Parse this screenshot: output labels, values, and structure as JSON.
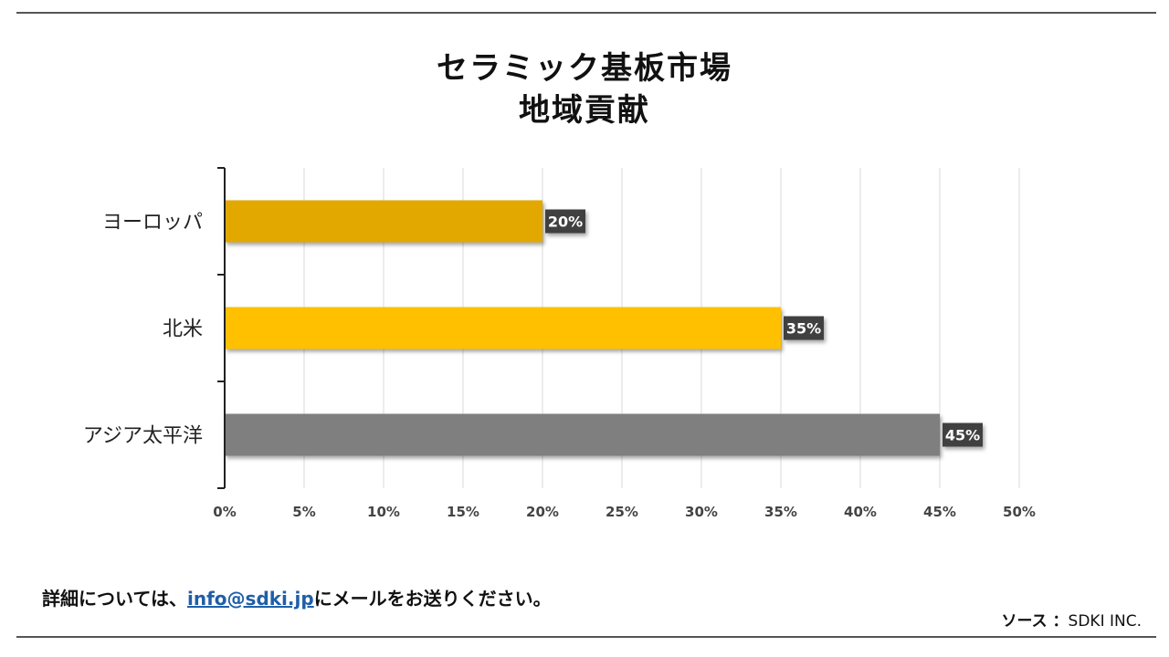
{
  "title": {
    "line1": "セラミック基板市場",
    "line2": "地域貢献"
  },
  "chart_data": {
    "type": "bar",
    "orientation": "horizontal",
    "categories": [
      "ヨーロッパ",
      "北米",
      "アジア太平洋"
    ],
    "values": [
      20,
      35,
      45
    ],
    "data_labels": [
      "20%",
      "35%",
      "45%"
    ],
    "bar_colors": [
      "#E2A800",
      "#FFC000",
      "#7F7F7F"
    ],
    "xlim": [
      0,
      50
    ],
    "x_ticks": [
      0,
      5,
      10,
      15,
      20,
      25,
      30,
      35,
      40,
      45,
      50
    ],
    "x_tick_labels": [
      "0%",
      "5%",
      "10%",
      "15%",
      "20%",
      "25%",
      "30%",
      "35%",
      "40%",
      "45%",
      "50%"
    ],
    "grid": true,
    "legend": "none"
  },
  "footer": {
    "note_prefix": "詳細については、",
    "email": "info@sdki.jp",
    "note_suffix": "にメールをお送りください。"
  },
  "source": {
    "label": "ソース ：",
    "value": "SDKI INC."
  },
  "colors": {
    "rule": "#555555",
    "label_bg": "#404040",
    "grid": "#d9d9d9",
    "link": "#1f5fa8"
  }
}
